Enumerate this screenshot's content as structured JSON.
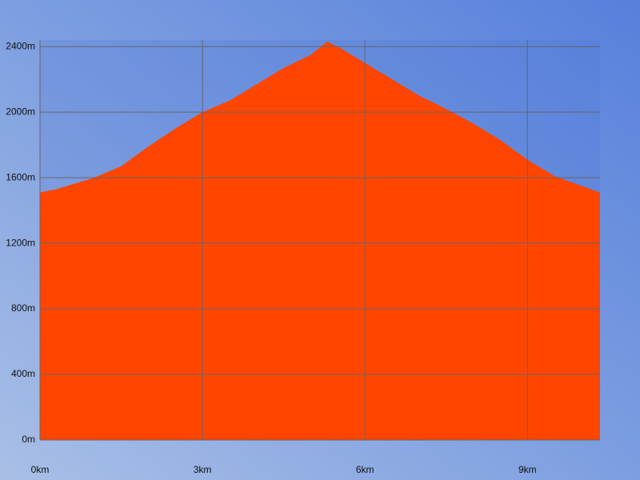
{
  "chart_data": {
    "type": "area",
    "color": "#ff4500",
    "x": [
      0,
      0.3,
      0.6,
      1.0,
      1.5,
      2.0,
      2.5,
      3.0,
      3.5,
      4.0,
      4.5,
      5.0,
      5.3,
      5.5,
      6.0,
      6.5,
      7.0,
      7.5,
      8.0,
      8.5,
      9.0,
      9.5,
      10.0,
      10.34
    ],
    "values": [
      1510,
      1530,
      1560,
      1600,
      1670,
      1790,
      1900,
      2000,
      2070,
      2170,
      2270,
      2350,
      2430,
      2400,
      2300,
      2200,
      2100,
      2020,
      1930,
      1830,
      1710,
      1610,
      1550,
      1510
    ],
    "xlim": [
      0,
      10.34
    ],
    "ylim": [
      0,
      2440
    ],
    "xticks": [
      {
        "value": 0,
        "label": "0km"
      },
      {
        "value": 3,
        "label": "3km"
      },
      {
        "value": 6,
        "label": "6km"
      },
      {
        "value": 9,
        "label": "9km"
      }
    ],
    "yticks": [
      {
        "value": 0,
        "label": "0m"
      },
      {
        "value": 400,
        "label": "400m"
      },
      {
        "value": 800,
        "label": "800m"
      },
      {
        "value": 1200,
        "label": "1200m"
      },
      {
        "value": 1600,
        "label": "1600m"
      },
      {
        "value": 2000,
        "label": "2000m"
      },
      {
        "value": 2400,
        "label": "2400m"
      }
    ],
    "grid": true
  }
}
